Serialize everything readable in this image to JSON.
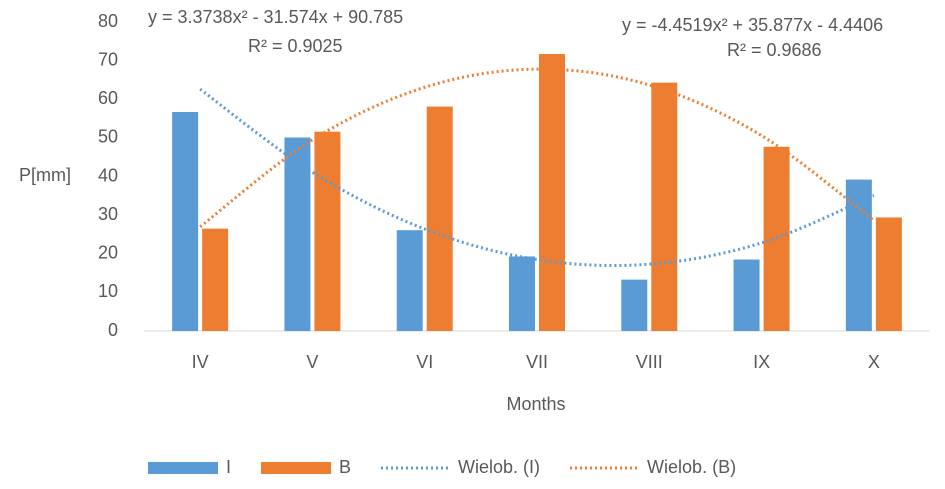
{
  "chart_data": {
    "type": "bar",
    "y_label": "P[mm]",
    "x_label": "Months",
    "categories": [
      "IV",
      "V",
      "VI",
      "VII",
      "VIII",
      "IX",
      "X"
    ],
    "ylim": [
      0,
      80
    ],
    "yticks": [
      0,
      10,
      20,
      30,
      40,
      50,
      60,
      70,
      80
    ],
    "grid": false,
    "series": [
      {
        "name": "I",
        "color": "#5b9bd5",
        "values": [
          56.7,
          50.1,
          26.1,
          19.3,
          13.3,
          18.5,
          39.2
        ]
      },
      {
        "name": "B",
        "color": "#ed7d31",
        "values": [
          26.5,
          51.6,
          58.1,
          71.7,
          64.3,
          47.7,
          29.4
        ]
      }
    ],
    "trendlines": [
      {
        "name": "Wielob. (I)",
        "color": "#5b9bd5",
        "style": "dotted",
        "values": [
          62.6,
          41.1,
          26.4,
          18.5,
          17.3,
          22.8,
          35.1
        ],
        "equation": "y = 3.3738x² - 31.574x + 90.785",
        "r_squared": "R² = 0.9025"
      },
      {
        "name": "Wielob. (B)",
        "color": "#ed7d31",
        "style": "dotted",
        "values": [
          27.0,
          49.5,
          63.1,
          67.8,
          63.7,
          50.6,
          28.6
        ],
        "equation": "y = -4.4519x² + 35.877x - 4.4406",
        "r_squared": "R² = 0.9686"
      }
    ],
    "legend": "bottom"
  }
}
